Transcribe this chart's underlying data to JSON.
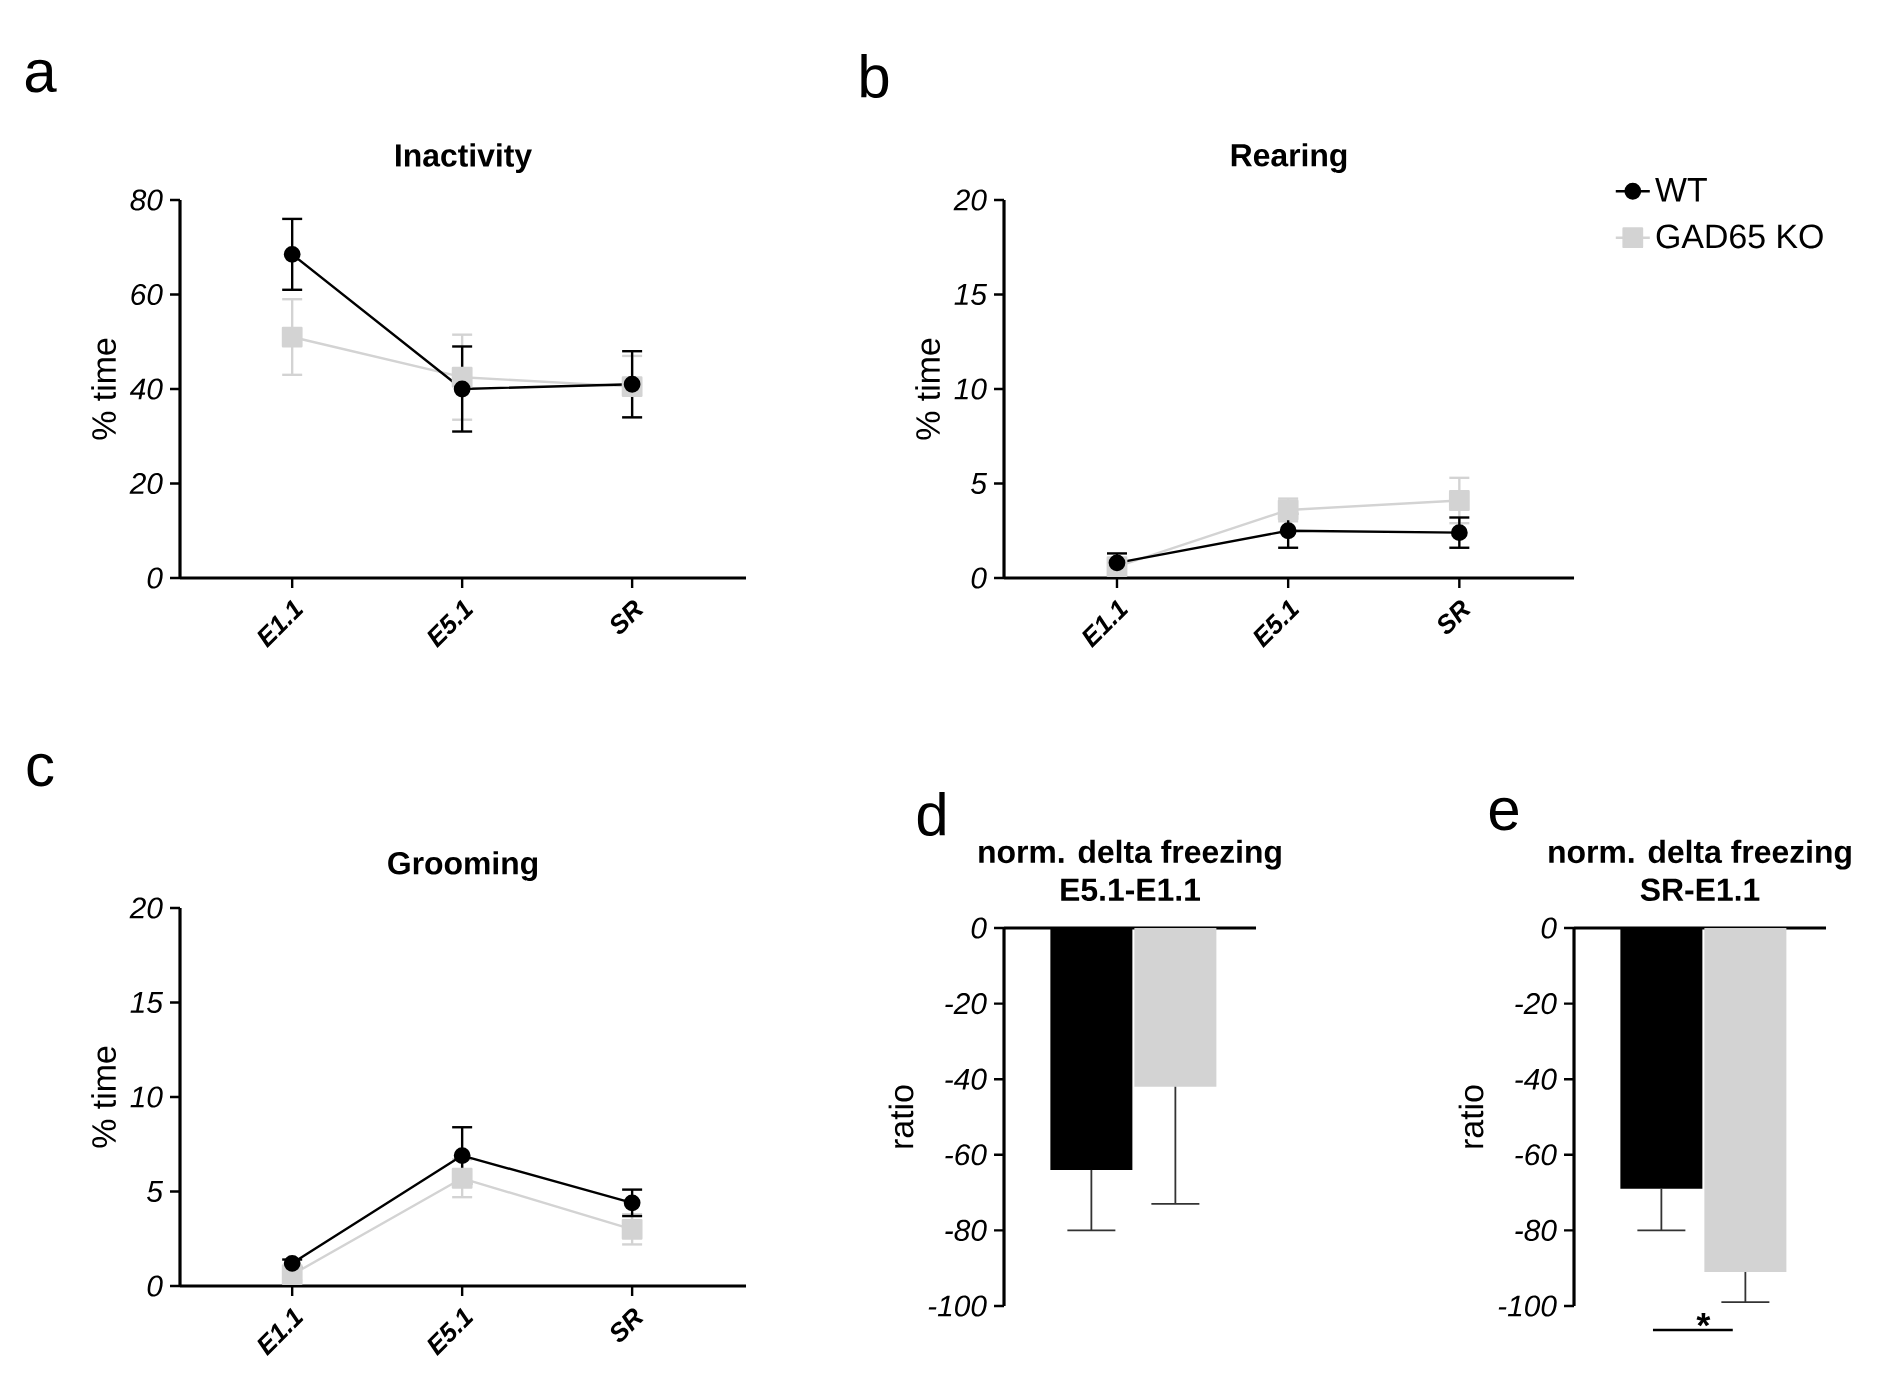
{
  "chart_data": [
    {
      "type": "line",
      "title": "Inactivity",
      "ylabel": "% time",
      "categories": [
        "E1.1",
        "E5.1",
        "SR"
      ],
      "ylim": [
        0,
        80
      ],
      "yticks": [
        0,
        20,
        40,
        60,
        80
      ],
      "annotations": [
        "a"
      ],
      "line_style": "solid",
      "series": [
        {
          "color": "#000000",
          "marker": "circle",
          "values": [
            68.5,
            40,
            41
          ],
          "errors": [
            7.5,
            9,
            7
          ]
        },
        {
          "color": "#d3d3d3",
          "marker": "square",
          "values": [
            51,
            42.5,
            40.5
          ],
          "errors": [
            8,
            9,
            6.5
          ]
        }
      ]
    },
    {
      "type": "line",
      "title": "Rearing",
      "ylabel": "% time",
      "categories": [
        "E1.1",
        "E5.1",
        "SR"
      ],
      "ylim": [
        0,
        20
      ],
      "yticks": [
        0,
        5,
        10,
        15,
        20
      ],
      "annotations": [
        "b"
      ],
      "line_style": "solid",
      "legend": "top right",
      "series": [
        {
          "name": "WT",
          "color": "#000000",
          "marker": "circle",
          "values": [
            0.8,
            2.5,
            2.4
          ],
          "errors": [
            0.5,
            0.9,
            0.8
          ]
        },
        {
          "name": "GAD65 KO",
          "color": "#d3d3d3",
          "marker": "square",
          "values": [
            0.6,
            3.6,
            4.1
          ],
          "errors": [
            0.4,
            0.6,
            1.2
          ]
        }
      ]
    },
    {
      "type": "line",
      "title": "Grooming",
      "ylabel": "% time",
      "categories": [
        "E1.1",
        "E5.1",
        "SR"
      ],
      "ylim": [
        0,
        20
      ],
      "yticks": [
        0,
        5,
        10,
        15,
        20
      ],
      "annotations": [
        "c"
      ],
      "line_style": "solid",
      "series": [
        {
          "color": "#000000",
          "marker": "circle",
          "values": [
            1.2,
            6.9,
            4.4
          ],
          "errors": [
            0.2,
            1.5,
            0.7
          ]
        },
        {
          "color": "#d3d3d3",
          "marker": "square",
          "values": [
            0.6,
            5.7,
            3.0
          ],
          "errors": [
            0.3,
            1.0,
            0.8
          ]
        }
      ]
    },
    {
      "type": "bar",
      "title": "norm. delta freezing E5.1-E1.1",
      "ylabel": "ratio",
      "categories": [
        null,
        null
      ],
      "ylim": [
        -100,
        0
      ],
      "yticks": [
        -100,
        -80,
        -60,
        -40,
        -20,
        0
      ],
      "annotations": [
        "d"
      ],
      "values": [
        -64,
        -42
      ],
      "colors": [
        "#000000",
        "#d3d3d3"
      ],
      "errors": [
        [
          -80,
          -64
        ],
        [
          -73,
          -42
        ]
      ]
    },
    {
      "type": "bar",
      "title": "norm. delta freezing SR-E1.1",
      "ylabel": "ratio",
      "categories": [
        null,
        null
      ],
      "ylim": [
        -100,
        0
      ],
      "yticks": [
        -100,
        -80,
        -60,
        -40,
        -20,
        0
      ],
      "annotations": [
        "e",
        "*"
      ],
      "values": [
        -69,
        -91
      ],
      "colors": [
        "#000000",
        "#d3d3d3"
      ],
      "errors": [
        [
          -80,
          -69
        ],
        [
          -99,
          -91
        ]
      ]
    }
  ]
}
